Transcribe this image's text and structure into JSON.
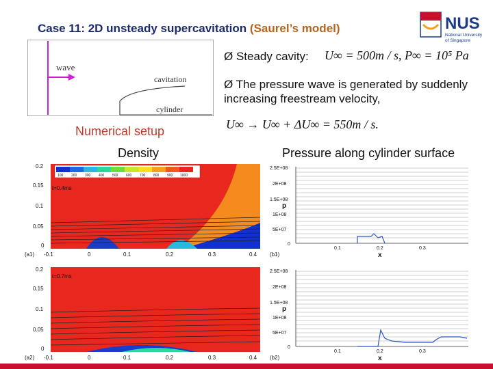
{
  "slide": {
    "title_main": "Case 11: 2D unsteady supercavitation ",
    "title_model": "(Saurel’s model)",
    "bullets": [
      "Ø Steady cavity:",
      "Ø The pressure wave is generated by suddenly increasing freestream velocity,"
    ],
    "eq1": "U∞ = 500m / s, P∞ = 10⁵ Pa",
    "eq2": "U∞ → U∞ + ΔU∞ = 550m / s.",
    "numerical_setup": "Numerical setup",
    "density_caption": "Density",
    "pressure_caption": "Pressure along cylinder surface",
    "logo_text": "NUS",
    "logo_sub1": "National University",
    "logo_sub2": "of Singapore"
  },
  "setup_diagram": {
    "wave_label": "wave",
    "cavitation_label": "cavitation",
    "cylinder_label": "cylinder"
  },
  "density_plots": [
    {
      "tag": "(a1)",
      "time": "t=0.4ms",
      "yticks": [
        "0.2",
        "0.15",
        "0.1",
        "0.05",
        "0"
      ],
      "xticks": [
        "-0.1",
        "0",
        "0.1",
        "0.2",
        "0.3",
        "0.4"
      ],
      "legend": [
        "100",
        "200",
        "300",
        "400",
        "500",
        "600",
        "700",
        "800",
        "900",
        "1000"
      ]
    },
    {
      "tag": "(a2)",
      "time": "t=0.7ms",
      "yticks": [
        "0.2",
        "0.15",
        "0.1",
        "0.05",
        "0"
      ],
      "xticks": [
        "-0.1",
        "0",
        "0.1",
        "0.2",
        "0.3",
        "0.4"
      ]
    }
  ],
  "pressure_plots": [
    {
      "tag": "(b1)",
      "ylabel": "p",
      "xlabel": "x",
      "yticks": [
        "2.5E+08",
        "2E+08",
        "1.5E+08",
        "1E+08",
        "5E+07",
        "0"
      ],
      "xticks": [
        "0.1",
        "0.2",
        "0.3"
      ]
    },
    {
      "tag": "(b2)",
      "ylabel": "p",
      "xlabel": "x",
      "yticks": [
        "2.5E+08",
        "2E+08",
        "1.5E+08",
        "1E+08",
        "5E+07",
        "0"
      ],
      "xticks": [
        "0.1",
        "0.2",
        "0.3"
      ]
    }
  ],
  "colors": {
    "title": "#1a2a6c",
    "accent": "#b5651d",
    "red_text": "#c0392b",
    "bar": "#c8102e",
    "curve": "#2b55c8"
  }
}
